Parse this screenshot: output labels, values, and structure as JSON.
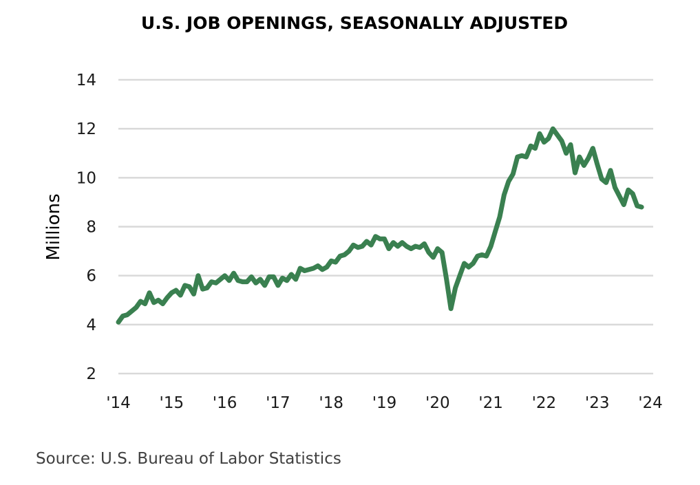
{
  "chart_data": {
    "type": "line",
    "title": "U.S. JOB OPENINGS, SEASONALLY ADJUSTED",
    "ylabel": "Millions",
    "xlabel": "",
    "ylim": [
      2,
      14
    ],
    "yticks": [
      2,
      4,
      6,
      8,
      10,
      12,
      14
    ],
    "xlim": [
      "2014-01",
      "2024-01"
    ],
    "xticks": [
      {
        "date": "2014-01",
        "label": "'14"
      },
      {
        "date": "2015-01",
        "label": "'15"
      },
      {
        "date": "2016-01",
        "label": "'16"
      },
      {
        "date": "2017-01",
        "label": "'17"
      },
      {
        "date": "2018-01",
        "label": "'18"
      },
      {
        "date": "2019-01",
        "label": "'19"
      },
      {
        "date": "2020-01",
        "label": "'20"
      },
      {
        "date": "2021-01",
        "label": "'21"
      },
      {
        "date": "2022-01",
        "label": "'22"
      },
      {
        "date": "2023-01",
        "label": "'23"
      },
      {
        "date": "2024-01",
        "label": "'24"
      }
    ],
    "grid": "horizontal",
    "legend": "none",
    "line_color": "#3a8050",
    "grid_color": "#d9d9d9",
    "x": [
      "2014-01",
      "2014-02",
      "2014-03",
      "2014-04",
      "2014-05",
      "2014-06",
      "2014-07",
      "2014-08",
      "2014-09",
      "2014-10",
      "2014-11",
      "2014-12",
      "2015-01",
      "2015-02",
      "2015-03",
      "2015-04",
      "2015-05",
      "2015-06",
      "2015-07",
      "2015-08",
      "2015-09",
      "2015-10",
      "2015-11",
      "2015-12",
      "2016-01",
      "2016-02",
      "2016-03",
      "2016-04",
      "2016-05",
      "2016-06",
      "2016-07",
      "2016-08",
      "2016-09",
      "2016-10",
      "2016-11",
      "2016-12",
      "2017-01",
      "2017-02",
      "2017-03",
      "2017-04",
      "2017-05",
      "2017-06",
      "2017-07",
      "2017-08",
      "2017-09",
      "2017-10",
      "2017-11",
      "2017-12",
      "2018-01",
      "2018-02",
      "2018-03",
      "2018-04",
      "2018-05",
      "2018-06",
      "2018-07",
      "2018-08",
      "2018-09",
      "2018-10",
      "2018-11",
      "2018-12",
      "2019-01",
      "2019-02",
      "2019-03",
      "2019-04",
      "2019-05",
      "2019-06",
      "2019-07",
      "2019-08",
      "2019-09",
      "2019-10",
      "2019-11",
      "2019-12",
      "2020-01",
      "2020-02",
      "2020-03",
      "2020-04",
      "2020-05",
      "2020-06",
      "2020-07",
      "2020-08",
      "2020-09",
      "2020-10",
      "2020-11",
      "2020-12",
      "2021-01",
      "2021-02",
      "2021-03",
      "2021-04",
      "2021-05",
      "2021-06",
      "2021-07",
      "2021-08",
      "2021-09",
      "2021-10",
      "2021-11",
      "2021-12",
      "2022-01",
      "2022-02",
      "2022-03",
      "2022-04",
      "2022-05",
      "2022-06",
      "2022-07",
      "2022-08",
      "2022-09",
      "2022-10",
      "2022-11",
      "2022-12",
      "2023-01",
      "2023-02",
      "2023-03",
      "2023-04",
      "2023-05",
      "2023-06",
      "2023-07",
      "2023-08",
      "2023-09",
      "2023-10",
      "2023-11"
    ],
    "values": [
      4.1,
      4.35,
      4.4,
      4.55,
      4.7,
      4.95,
      4.85,
      5.3,
      4.9,
      5.0,
      4.85,
      5.1,
      5.3,
      5.4,
      5.2,
      5.6,
      5.55,
      5.25,
      6.0,
      5.45,
      5.5,
      5.75,
      5.7,
      5.85,
      6.0,
      5.8,
      6.1,
      5.8,
      5.75,
      5.75,
      5.95,
      5.7,
      5.85,
      5.6,
      5.95,
      5.95,
      5.6,
      5.9,
      5.8,
      6.05,
      5.85,
      6.3,
      6.2,
      6.25,
      6.3,
      6.4,
      6.25,
      6.35,
      6.6,
      6.55,
      6.8,
      6.85,
      7.0,
      7.25,
      7.15,
      7.2,
      7.4,
      7.25,
      7.6,
      7.5,
      7.5,
      7.1,
      7.35,
      7.2,
      7.35,
      7.2,
      7.1,
      7.2,
      7.15,
      7.3,
      6.95,
      6.75,
      7.1,
      6.95,
      5.85,
      4.65,
      5.5,
      6.0,
      6.5,
      6.35,
      6.5,
      6.8,
      6.85,
      6.8,
      7.2,
      7.8,
      8.4,
      9.3,
      9.85,
      10.15,
      10.85,
      10.9,
      10.85,
      11.3,
      11.2,
      11.8,
      11.45,
      11.6,
      12.0,
      11.75,
      11.5,
      11.0,
      11.35,
      10.2,
      10.85,
      10.5,
      10.8,
      11.2,
      10.55,
      9.95,
      9.8,
      10.3,
      9.6,
      9.25,
      8.9,
      9.5,
      9.35,
      8.85,
      8.8
    ]
  },
  "source": "Source: U.S. Bureau of Labor Statistics"
}
